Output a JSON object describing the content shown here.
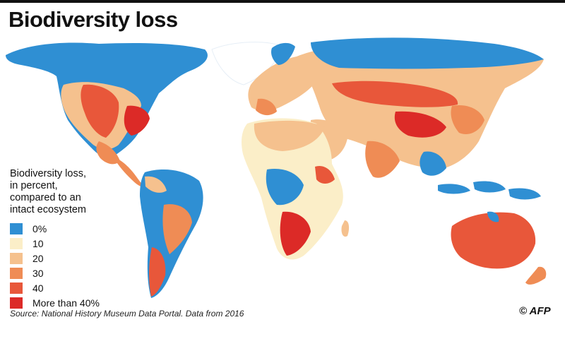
{
  "header": {
    "title": "Biodiversity loss"
  },
  "legend": {
    "title_lines": [
      "Biodiversity loss,",
      "in percent,",
      "compared to an",
      "intact ecosystem"
    ],
    "items": [
      {
        "label": "0%",
        "color": "#2f8fd3"
      },
      {
        "label": "10",
        "color": "#fbeec8"
      },
      {
        "label": "20",
        "color": "#f5c18e"
      },
      {
        "label": "30",
        "color": "#ef8c55"
      },
      {
        "label": "40",
        "color": "#e8573a"
      },
      {
        "label": "More than 40%",
        "color": "#dc2a27"
      }
    ]
  },
  "footer": {
    "source": "Source: National History Museum Data Portal. Data from 2016",
    "credit": "© AFP"
  }
}
